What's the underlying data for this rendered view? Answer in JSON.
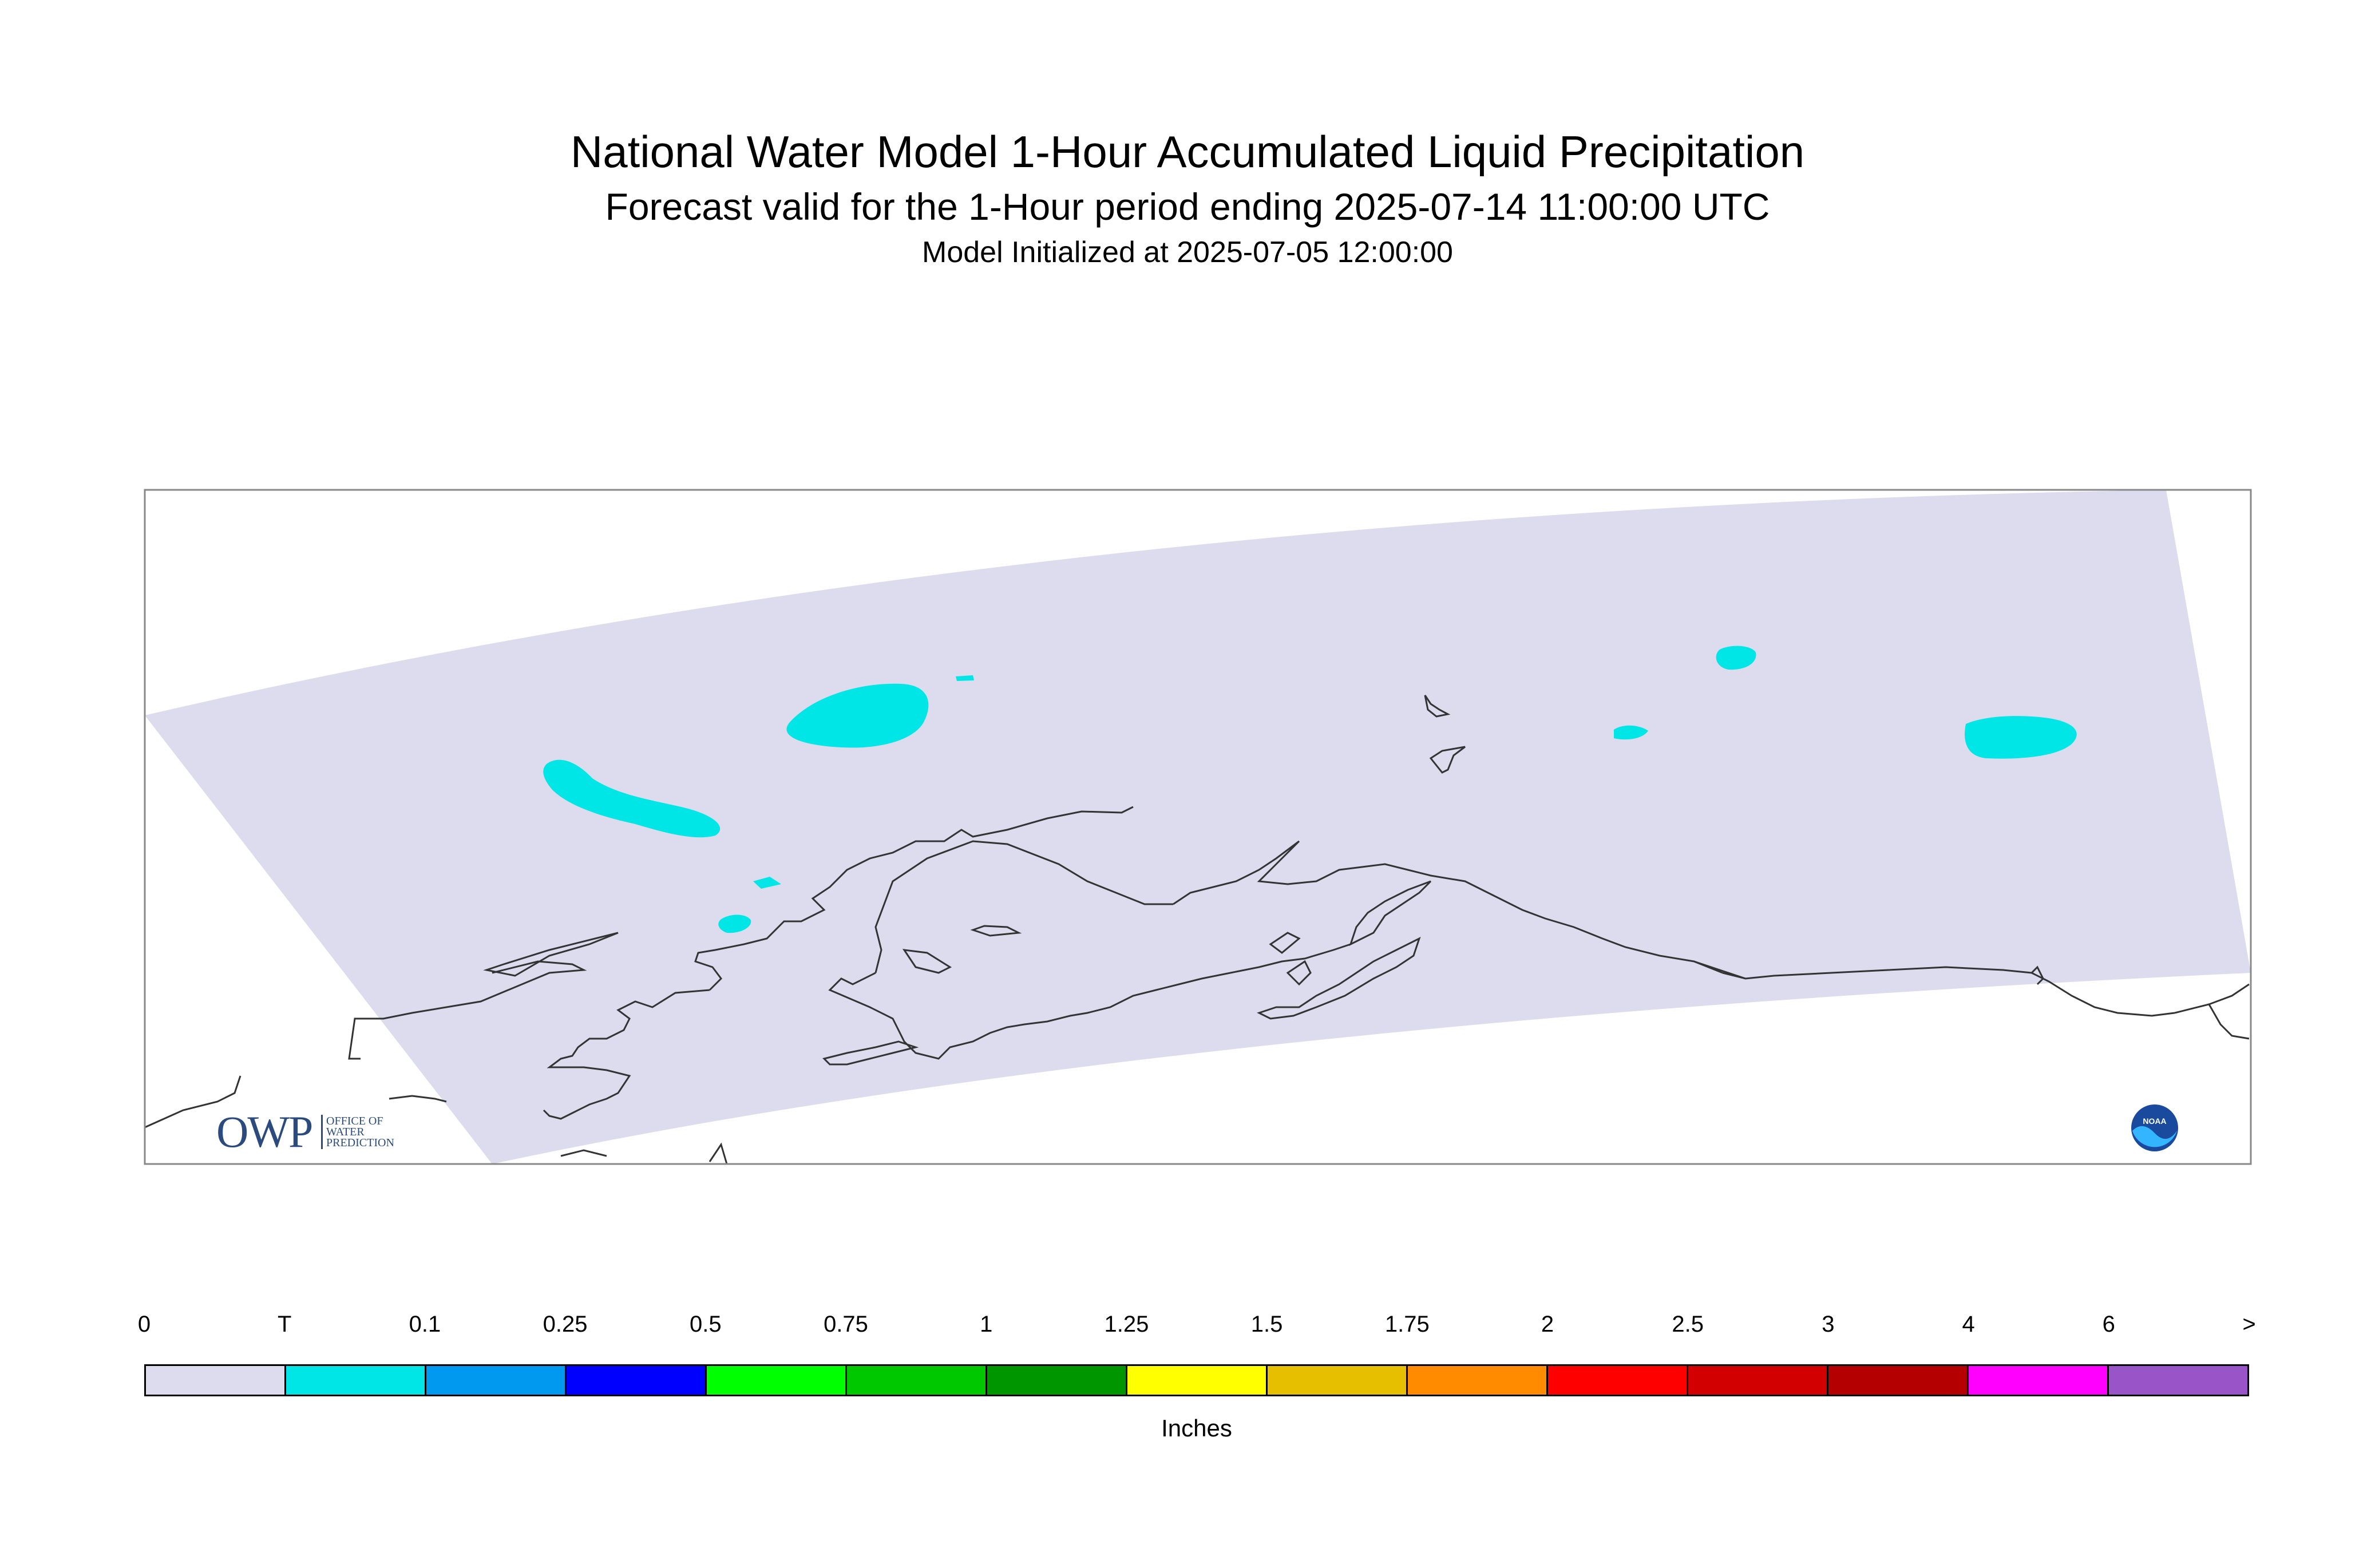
{
  "title": "National Water Model 1-Hour Accumulated Liquid Precipitation",
  "subtitle": "Forecast valid for the 1-Hour period ending 2025-07-14 11:00:00 UTC",
  "init": "Model Initialized at 2025-07-05 12:00:00",
  "logos": {
    "owp_text": "OWP",
    "owp_small": [
      "OFFICE OF",
      "WATER",
      "PREDICTION"
    ],
    "noaa_text": "NOAA"
  },
  "colors": {
    "domain_fill": "#dcdcee",
    "precip_trace": "#00e6e6",
    "coastline": "#333333"
  },
  "legend": {
    "ticks": [
      "0",
      "T",
      "0.1",
      "0.25",
      "0.5",
      "0.75",
      "1",
      "1.25",
      "1.5",
      "1.75",
      "2",
      "2.5",
      "3",
      "4",
      "6",
      ">"
    ],
    "colors": [
      "#dcdcee",
      "#00e6e6",
      "#0099f0",
      "#0000ff",
      "#00ff00",
      "#00c800",
      "#009600",
      "#ffff00",
      "#e6c000",
      "#ff8c00",
      "#ff0000",
      "#d20000",
      "#b40000",
      "#ff00ff",
      "#9955c8"
    ],
    "units": "Inches"
  }
}
